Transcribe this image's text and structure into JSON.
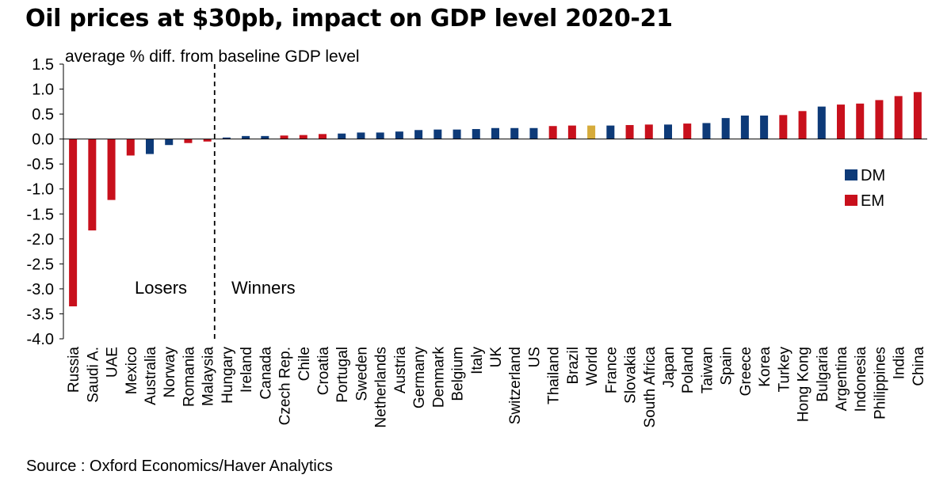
{
  "title": "Oil prices at $30pb, impact on GDP level 2020-21",
  "source": "Source : Oxford Economics/Haver Analytics",
  "colors": {
    "DM": "#0d3a78",
    "EM": "#c8101c",
    "World": "#d6ab3a"
  },
  "chart_data": {
    "type": "bar",
    "title": "Oil prices at $30pb, impact on GDP level 2020-21",
    "ylabel": "average  % diff. from baseline GDP level",
    "xlabel": "",
    "ylim": [
      -4.0,
      1.5
    ],
    "yticks": [
      "1.5",
      "1.0",
      "0.5",
      "0.0",
      "-0.5",
      "-1.0",
      "-1.5",
      "-2.0",
      "-2.5",
      "-3.0",
      "-3.5",
      "-4.0"
    ],
    "grid": false,
    "legend": {
      "placement": "right",
      "entries": [
        "DM",
        "EM"
      ]
    },
    "annotations": [
      "Losers",
      "Winners"
    ],
    "categories": [
      "Russia",
      "Saudi A.",
      "UAE",
      "Mexico",
      "Australia",
      "Norway",
      "Romania",
      "Malaysia",
      "Hungary",
      "Ireland",
      "Canada",
      "Czech Rep.",
      "Chile",
      "Croatia",
      "Portugal",
      "Sweden",
      "Netherlands",
      "Austria",
      "Germany",
      "Denmark",
      "Belgium",
      "Italy",
      "UK",
      "Switzerland",
      "US",
      "Thailand",
      "Brazil",
      "World",
      "France",
      "Slovakia",
      "South Africa",
      "Japan",
      "Poland",
      "Taiwan",
      "Spain",
      "Greece",
      "Korea",
      "Turkey",
      "Hong Kong",
      "Bulgaria",
      "Argentina",
      "Indonesia",
      "Philippines",
      "India",
      "China"
    ],
    "values": [
      -3.35,
      -1.83,
      -1.22,
      -0.33,
      -0.3,
      -0.12,
      -0.08,
      -0.05,
      0.03,
      0.06,
      0.06,
      0.07,
      0.08,
      0.1,
      0.11,
      0.13,
      0.13,
      0.15,
      0.18,
      0.19,
      0.19,
      0.2,
      0.22,
      0.22,
      0.22,
      0.26,
      0.27,
      0.27,
      0.27,
      0.28,
      0.29,
      0.29,
      0.31,
      0.32,
      0.42,
      0.47,
      0.47,
      0.48,
      0.56,
      0.65,
      0.69,
      0.71,
      0.78,
      0.86,
      0.94
    ],
    "groups": [
      "EM",
      "EM",
      "EM",
      "EM",
      "DM",
      "DM",
      "EM",
      "EM",
      "DM",
      "DM",
      "DM",
      "EM",
      "EM",
      "EM",
      "DM",
      "DM",
      "DM",
      "DM",
      "DM",
      "DM",
      "DM",
      "DM",
      "DM",
      "DM",
      "DM",
      "EM",
      "EM",
      "World",
      "DM",
      "EM",
      "EM",
      "DM",
      "EM",
      "DM",
      "DM",
      "DM",
      "DM",
      "EM",
      "EM",
      "DM",
      "EM",
      "EM",
      "EM",
      "EM",
      "EM"
    ]
  }
}
